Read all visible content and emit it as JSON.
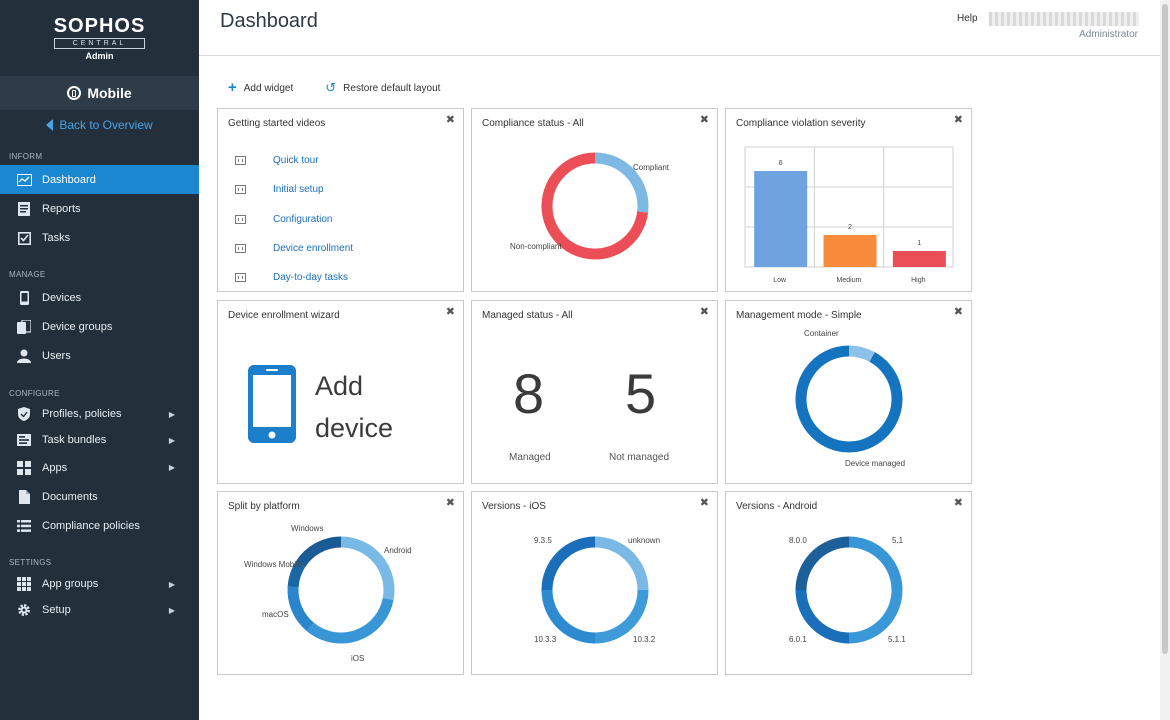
{
  "brand": {
    "logo": "SOPHOS",
    "sub": "CENTRAL",
    "role": "Admin"
  },
  "sidebar": {
    "product": "Mobile",
    "back": "Back to Overview",
    "sections": {
      "inform": "INFORM",
      "manage": "MANAGE",
      "configure": "CONFIGURE",
      "settings": "SETTINGS"
    },
    "items": {
      "dashboard": "Dashboard",
      "reports": "Reports",
      "tasks": "Tasks",
      "devices": "Devices",
      "device_groups": "Device groups",
      "users": "Users",
      "profiles": "Profiles, policies",
      "task_bundles": "Task bundles",
      "apps": "Apps",
      "documents": "Documents",
      "compliance": "Compliance policies",
      "app_groups": "App groups",
      "setup": "Setup"
    }
  },
  "header": {
    "title": "Dashboard",
    "help": "Help",
    "role": "Administrator"
  },
  "toolbar": {
    "add_widget": "Add widget",
    "restore": "Restore default layout"
  },
  "widgets": {
    "videos": {
      "title": "Getting started videos",
      "links": [
        "Quick tour",
        "Initial setup",
        "Configuration",
        "Device enrollment",
        "Day-to-day tasks"
      ]
    },
    "compliance_status": {
      "title": "Compliance status - All",
      "labels": {
        "compliant": "Compliant",
        "non_compliant": "Non-compliant"
      }
    },
    "severity": {
      "title": "Compliance violation severity"
    },
    "enrollment": {
      "title": "Device enrollment wizard",
      "line1": "Add",
      "line2": "device"
    },
    "managed_status": {
      "title": "Managed status - All",
      "managed_value": "8",
      "managed_label": "Managed",
      "not_managed_value": "5",
      "not_managed_label": "Not managed"
    },
    "management_mode": {
      "title": "Management mode - Simple",
      "labels": {
        "container": "Container",
        "device_managed": "Device managed"
      }
    },
    "platform": {
      "title": "Split by platform",
      "labels": {
        "windows": "Windows",
        "windows_mobile": "Windows Mobile",
        "android": "Android",
        "macos": "macOS",
        "ios": "iOS"
      }
    },
    "versions_ios": {
      "title": "Versions - iOS",
      "labels": {
        "v935": "9.3.5",
        "unknown": "unknown",
        "v1033": "10.3.3",
        "v1032": "10.3.2"
      }
    },
    "versions_android": {
      "title": "Versions - Android",
      "labels": {
        "v800": "8.0.0",
        "v51": "5.1",
        "v601": "6.0.1",
        "v511": "5.1.1"
      }
    }
  },
  "chart_data": [
    {
      "type": "pie",
      "title": "Compliance status - All",
      "categories": [
        "Compliant",
        "Non-compliant"
      ],
      "values": [
        27,
        73
      ],
      "colors": [
        "#7db9e3",
        "#ec4e57"
      ]
    },
    {
      "type": "bar",
      "title": "Compliance violation severity",
      "categories": [
        "Low",
        "Medium",
        "High"
      ],
      "values": [
        6,
        2,
        1
      ],
      "colors": [
        "#6fa3e0",
        "#f98c3c",
        "#ec4e57"
      ],
      "ylim": [
        0,
        7.5
      ],
      "grid": true
    },
    {
      "type": "pie",
      "title": "Management mode - Simple",
      "categories": [
        "Container",
        "Device managed"
      ],
      "values": [
        8,
        92
      ],
      "colors": [
        "#8cc2ea",
        "#1574c0"
      ]
    },
    {
      "type": "pie",
      "title": "Split by platform",
      "categories": [
        "Android",
        "iOS",
        "macOS",
        "Windows Mobile",
        "Windows"
      ],
      "values": [
        28,
        33,
        15,
        8,
        16
      ],
      "colors": [
        "#7ab8e6",
        "#3996d6",
        "#2a86cc",
        "#1a67a6",
        "#1b5b93"
      ]
    },
    {
      "type": "pie",
      "title": "Versions - iOS",
      "categories": [
        "unknown",
        "10.3.2",
        "10.3.3",
        "9.3.5"
      ],
      "values": [
        25,
        25,
        25,
        25
      ],
      "colors": [
        "#7ab8e6",
        "#3e9ad8",
        "#2e8bd0",
        "#1b6fba"
      ]
    },
    {
      "type": "pie",
      "title": "Versions - Android",
      "categories": [
        "5.1",
        "5.1.1",
        "6.0.1",
        "8.0.0"
      ],
      "values": [
        25,
        25,
        25,
        25
      ],
      "colors": [
        "#3996d6",
        "#3a98d8",
        "#1b6fba",
        "#1c5f99"
      ]
    }
  ]
}
